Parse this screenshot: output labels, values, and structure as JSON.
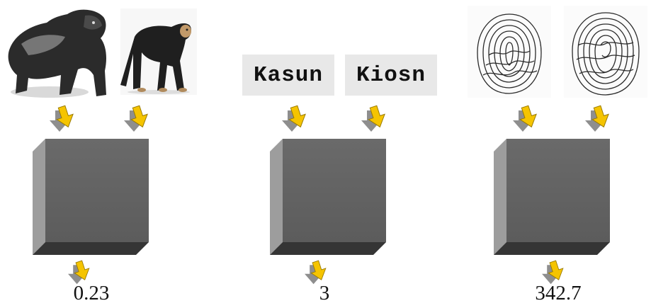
{
  "panels": [
    {
      "inputs": [
        "gorilla-image",
        "chimpanzee-image"
      ],
      "result": "0.23"
    },
    {
      "inputs": [
        "Kasun",
        "Kiosn"
      ],
      "result": "3"
    },
    {
      "inputs": [
        "fingerprint-image",
        "fingerprint-image"
      ],
      "result": "342.7"
    }
  ],
  "colors": {
    "arrow": "#f5c400",
    "arrow_shadow": "#8a8a8a",
    "cube_front": "#666666",
    "cube_left": "#9a9a9a",
    "cube_bottom": "#3a3a3a"
  }
}
